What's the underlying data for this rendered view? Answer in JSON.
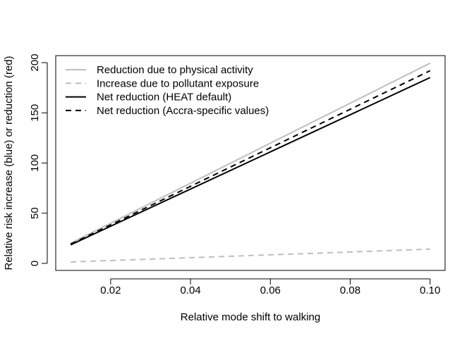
{
  "chart_data": {
    "type": "line",
    "xlabel": "Relative mode shift to walking",
    "ylabel": "Relative risk increase (blue) or reduction (red)",
    "xlim": [
      0.00625,
      0.10375
    ],
    "ylim": [
      -7,
      207
    ],
    "xticks": [
      0.02,
      0.04,
      0.06,
      0.08,
      0.1
    ],
    "xtick_labels": [
      "0.02",
      "0.04",
      "0.06",
      "0.08",
      "0.10"
    ],
    "yticks": [
      0,
      50,
      100,
      150,
      200
    ],
    "ytick_labels": [
      "0",
      "50",
      "100",
      "150",
      "200"
    ],
    "grid": false,
    "legend_position": "top-left",
    "series": [
      {
        "name": "Reduction due to physical activity",
        "color": "#bebebe",
        "dash": "solid",
        "x": [
          0.01,
          0.1
        ],
        "y": [
          20,
          199.5
        ]
      },
      {
        "name": "Increase due to pollutant exposure",
        "color": "#bebebe",
        "dash": "dashed",
        "x": [
          0.01,
          0.1
        ],
        "y": [
          1.4,
          14.2
        ]
      },
      {
        "name": "Net reduction (HEAT default)",
        "color": "#000000",
        "dash": "solid",
        "x": [
          0.01,
          0.1
        ],
        "y": [
          18.5,
          185.2
        ]
      },
      {
        "name": "Net reduction (Accra-specific values)",
        "color": "#000000",
        "dash": "dashed",
        "x": [
          0.01,
          0.1
        ],
        "y": [
          19.2,
          192.0
        ]
      }
    ]
  }
}
